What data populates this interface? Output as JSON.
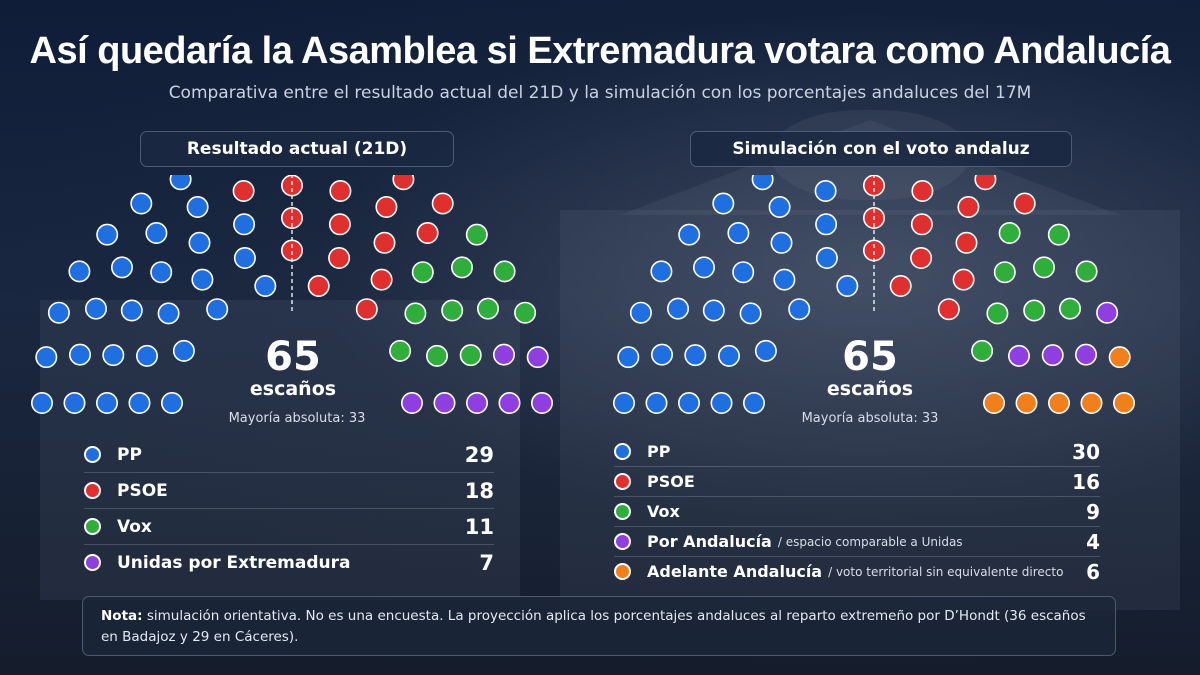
{
  "header": {
    "title": "Así quedaría la Asamblea si Extremadura votara como Andalucía",
    "subtitle": "Comparativa entre el resultado actual del 21D y la simulación con los porcentajes andaluces del 17M"
  },
  "colors": {
    "PP": "#1f6fe0",
    "PSOE": "#e02f2f",
    "Vox": "#2fae3c",
    "Unidas": "#8f3fe0",
    "Adelante": "#f07f1c"
  },
  "chart_data": [
    {
      "type": "parliament",
      "panel_title": "Resultado actual (21D)",
      "total": 65,
      "total_label": "escaños",
      "majority": "Mayoría absoluta: 33",
      "parties": [
        {
          "name": "PP",
          "seats": 29,
          "color": "#1f6fe0"
        },
        {
          "name": "PSOE",
          "seats": 18,
          "color": "#e02f2f"
        },
        {
          "name": "Vox",
          "seats": 11,
          "color": "#2fae3c"
        },
        {
          "name": "Unidas por Extremadura",
          "seats": 7,
          "color": "#8f3fe0"
        }
      ]
    },
    {
      "type": "parliament",
      "panel_title": "Simulación con el voto andaluz",
      "total": 65,
      "total_label": "escaños",
      "majority": "Mayoría absoluta: 33",
      "parties": [
        {
          "name": "PP",
          "seats": 30,
          "color": "#1f6fe0"
        },
        {
          "name": "PSOE",
          "seats": 16,
          "color": "#e02f2f"
        },
        {
          "name": "Vox",
          "seats": 9,
          "color": "#2fae3c"
        },
        {
          "name": "Por Andalucía",
          "note": "/ espacio comparable a Unidas",
          "seats": 4,
          "color": "#8f3fe0"
        },
        {
          "name": "Adelante Andalucía",
          "note": "/ voto territorial sin equivalente directo",
          "seats": 6,
          "color": "#f07f1c"
        }
      ]
    }
  ],
  "note": {
    "label": "Nota:",
    "text": "simulación orientativa. No es una encuesta. La proyección aplica los porcentajes andaluces al reparto extremeño por D’Hondt (36 escaños en Badajoz y 29 en Cáceres)."
  }
}
